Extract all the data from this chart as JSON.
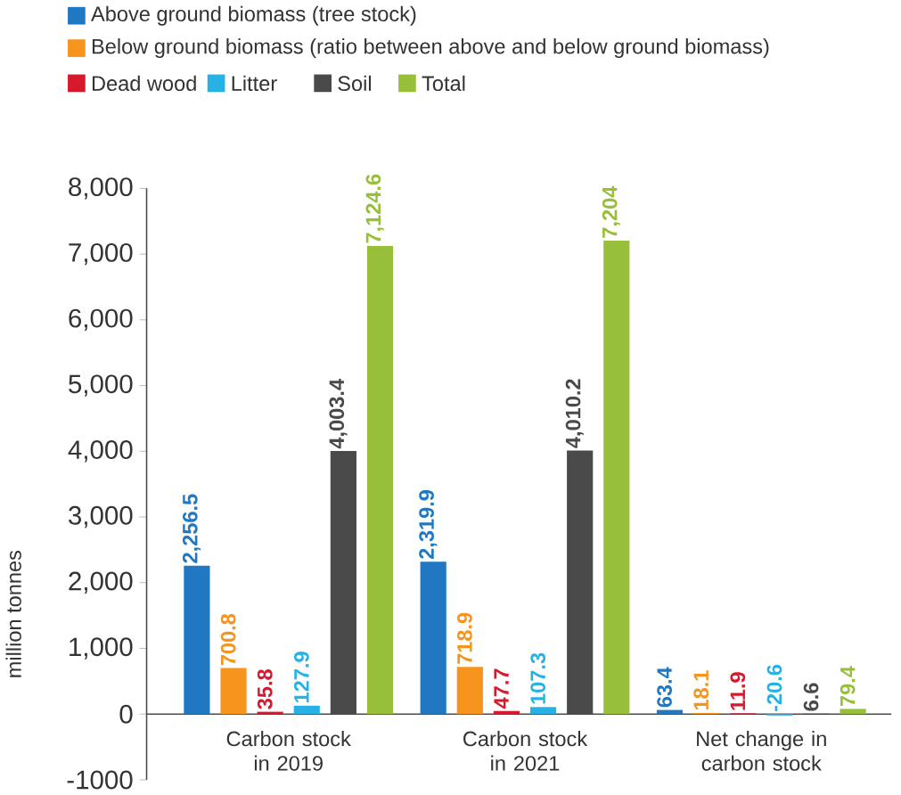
{
  "chart_data": {
    "type": "bar",
    "categories": [
      "Carbon stock in 2019",
      "Carbon stock in 2021",
      "Net change in carbon stock"
    ],
    "ylabel": "million tonnes",
    "ylim": [
      -1000,
      8000
    ],
    "yticks": [
      {
        "value": -1000,
        "label": "-1000"
      },
      0,
      {
        "value": 1000,
        "label": "1,000"
      },
      {
        "value": 2000,
        "label": "2,000"
      },
      {
        "value": 3000,
        "label": "3,000"
      },
      {
        "value": 4000,
        "label": "4,000"
      },
      {
        "value": 5000,
        "label": "5,000"
      },
      {
        "value": 6000,
        "label": "6,000"
      },
      {
        "value": 7000,
        "label": "7,000"
      },
      {
        "value": 8000,
        "label": "8,000"
      }
    ],
    "legend": "top",
    "grid": false,
    "series": [
      {
        "name": "Above ground biomass (tree stock)",
        "color": "#1f78c1",
        "values": [
          2256.5,
          2319.9,
          63.4
        ],
        "value_labels": [
          "2,256.5",
          "2,319.9",
          "63.4"
        ]
      },
      {
        "name": "Below ground biomass (ratio between above and below ground biomass)",
        "color": "#f7941d",
        "values": [
          700.8,
          718.9,
          18.1
        ],
        "value_labels": [
          "700.8",
          "718.9",
          "18.1"
        ]
      },
      {
        "name": "Dead wood",
        "color": "#d7192d",
        "values": [
          35.8,
          47.7,
          11.9
        ],
        "value_labels": [
          "35.8",
          "47.7",
          "11.9"
        ]
      },
      {
        "name": "Litter",
        "color": "#27b2e6",
        "values": [
          127.9,
          107.3,
          -20.6
        ],
        "value_labels": [
          "127.9",
          "107.3",
          "-20.6"
        ]
      },
      {
        "name": "Soil",
        "color": "#4a4a4a",
        "values": [
          4003.4,
          4010.2,
          6.6
        ],
        "value_labels": [
          "4,003.4",
          "4,010.2",
          "6.6"
        ]
      },
      {
        "name": "Total",
        "color": "#98bf3a",
        "values": [
          7124.6,
          7204,
          79.4
        ],
        "value_labels": [
          "7,124.6",
          "7,204",
          "79.4"
        ]
      }
    ]
  }
}
